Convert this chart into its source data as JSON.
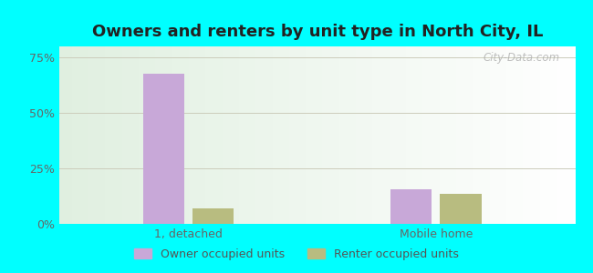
{
  "title": "Owners and renters by unit type in North City, IL",
  "categories": [
    "1, detached",
    "Mobile home"
  ],
  "owner_values": [
    0.676,
    0.155
  ],
  "renter_values": [
    0.068,
    0.135
  ],
  "owner_color": "#c8a8d8",
  "renter_color": "#b8bc80",
  "ylim": [
    0,
    0.8
  ],
  "yticks": [
    0,
    0.25,
    0.5,
    0.75
  ],
  "yticklabels": [
    "0%",
    "25%",
    "50%",
    "75%"
  ],
  "bar_width": 0.08,
  "group_centers": [
    0.25,
    0.73
  ],
  "title_fontsize": 13,
  "tick_fontsize": 9,
  "legend_labels": [
    "Owner occupied units",
    "Renter occupied units"
  ],
  "watermark": "City-Data.com",
  "outer_bg": "#00ffff",
  "plot_bg_color": "#e8f0e0"
}
